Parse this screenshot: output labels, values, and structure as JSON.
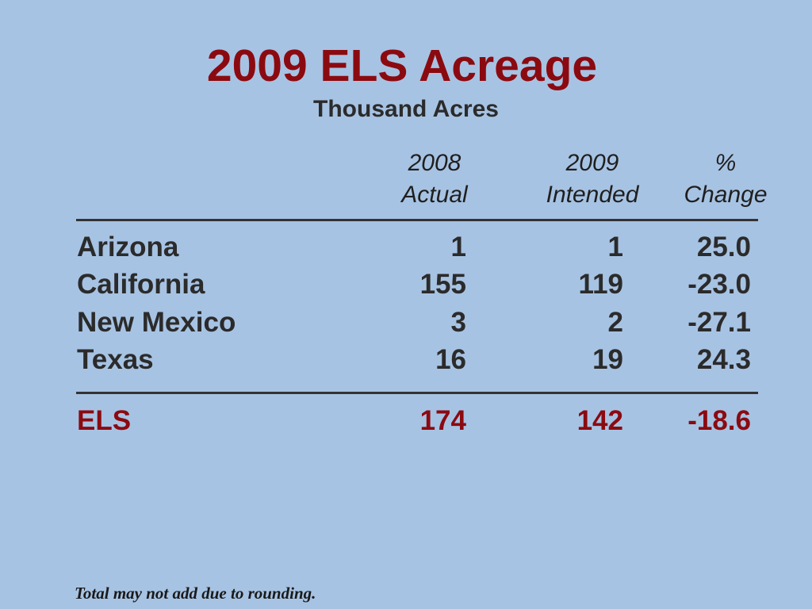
{
  "title": "2009 ELS Acreage",
  "subtitle": "Thousand Acres",
  "columns": {
    "actual": [
      "2008",
      "Actual"
    ],
    "intended": [
      "2009",
      "Intended"
    ],
    "change": [
      "%",
      "Change"
    ]
  },
  "rows": [
    {
      "state": "Arizona",
      "actual_2008": "1",
      "intended_2009": "1",
      "pct_change": "25.0"
    },
    {
      "state": "California",
      "actual_2008": "155",
      "intended_2009": "119",
      "pct_change": "-23.0"
    },
    {
      "state": "New Mexico",
      "actual_2008": "3",
      "intended_2009": "2",
      "pct_change": "-27.1"
    },
    {
      "state": "Texas",
      "actual_2008": "16",
      "intended_2009": "19",
      "pct_change": "24.3"
    }
  ],
  "total": {
    "state": "ELS",
    "actual_2008": "174",
    "intended_2009": "142",
    "pct_change": "-18.6"
  },
  "footnote": "Total may not add due to rounding.",
  "colors": {
    "background": "#a7c3e3",
    "accent": "#8b0a10",
    "text": "#2b2b2b"
  }
}
